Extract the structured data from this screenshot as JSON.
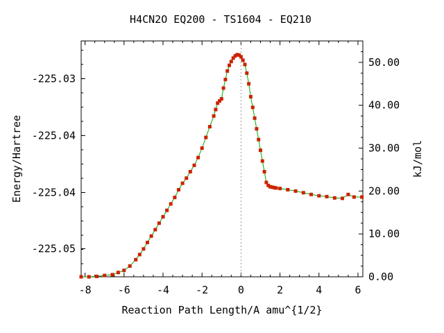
{
  "chart_data": {
    "type": "line",
    "title": "H4CN2O   EQ200 - TS1604 - EQ210",
    "xlabel": "Reaction Path Length/A amu^{1/2}",
    "ylabel": "Energy/Hartree",
    "y2label": "kJ/mol",
    "xlim": [
      -8.2,
      6.25
    ],
    "ylim": [
      -225.0568,
      -225.0249
    ],
    "y2lim": [
      0,
      55
    ],
    "x_ticks": [
      -8,
      -6,
      -4,
      -2,
      0,
      2,
      4,
      6
    ],
    "x_tick_labels": [
      "-8",
      "-6",
      "-4",
      "-2",
      "0",
      "2",
      "4",
      "6"
    ],
    "y_ticks": [
      -225.03,
      -225.0377,
      -225.0454,
      -225.053
    ],
    "y_tick_labels": [
      "-225.03",
      "-225.04",
      "-225.04",
      "-225.05"
    ],
    "y2_ticks": [
      0,
      10,
      20,
      30,
      40,
      50
    ],
    "y2_tick_labels": [
      "0.00",
      "10.00",
      "20.00",
      "30.00",
      "40.00",
      "50.00"
    ],
    "ts_marker_x": 0,
    "grid": false,
    "line_color": "#00aa00",
    "marker_color": "#cc2200",
    "series": [
      {
        "x": [
          -8.2,
          -7.8,
          -7.4,
          -7.0,
          -6.6,
          -6.3,
          -6.0,
          -5.7,
          -5.4,
          -5.2,
          -5.0,
          -4.8,
          -4.6,
          -4.4,
          -4.2,
          -4.0,
          -3.8,
          -3.6,
          -3.4,
          -3.2,
          -3.0,
          -2.8,
          -2.6,
          -2.4,
          -2.2,
          -2.0,
          -1.8,
          -1.6,
          -1.4,
          -1.3,
          -1.2,
          -1.1,
          -1.0,
          -0.9,
          -0.8,
          -0.7,
          -0.6,
          -0.5,
          -0.4,
          -0.3,
          -0.2,
          -0.1,
          0.0,
          0.1,
          0.2,
          0.3,
          0.4,
          0.5,
          0.6,
          0.7,
          0.8,
          0.9,
          1.0,
          1.1,
          1.2,
          1.3,
          1.4,
          1.5,
          1.6,
          1.7,
          1.8,
          2.0,
          2.4,
          2.8,
          3.2,
          3.6,
          4.0,
          4.4,
          4.8,
          5.2,
          5.5,
          5.8,
          6.2
        ],
        "y": [
          0.0,
          0.0,
          0.1,
          0.3,
          0.5,
          1.0,
          1.5,
          2.5,
          4.0,
          5.2,
          6.5,
          8.0,
          9.5,
          11.0,
          12.5,
          14.0,
          15.5,
          17.0,
          18.5,
          20.3,
          21.8,
          23.0,
          24.5,
          26.0,
          27.8,
          30.0,
          32.5,
          35.0,
          37.5,
          39.0,
          40.5,
          41.0,
          41.5,
          44.0,
          46.0,
          48.0,
          49.3,
          50.2,
          51.0,
          51.5,
          51.8,
          51.7,
          51.3,
          50.5,
          49.5,
          47.5,
          45.0,
          42.0,
          39.5,
          37.0,
          34.5,
          32.0,
          29.5,
          27.0,
          24.5,
          22.0,
          21.3,
          21.0,
          20.9,
          20.8,
          20.7,
          20.6,
          20.3,
          20.0,
          19.6,
          19.2,
          18.9,
          18.7,
          18.4,
          18.3,
          19.2,
          18.6,
          18.6
        ]
      }
    ]
  }
}
